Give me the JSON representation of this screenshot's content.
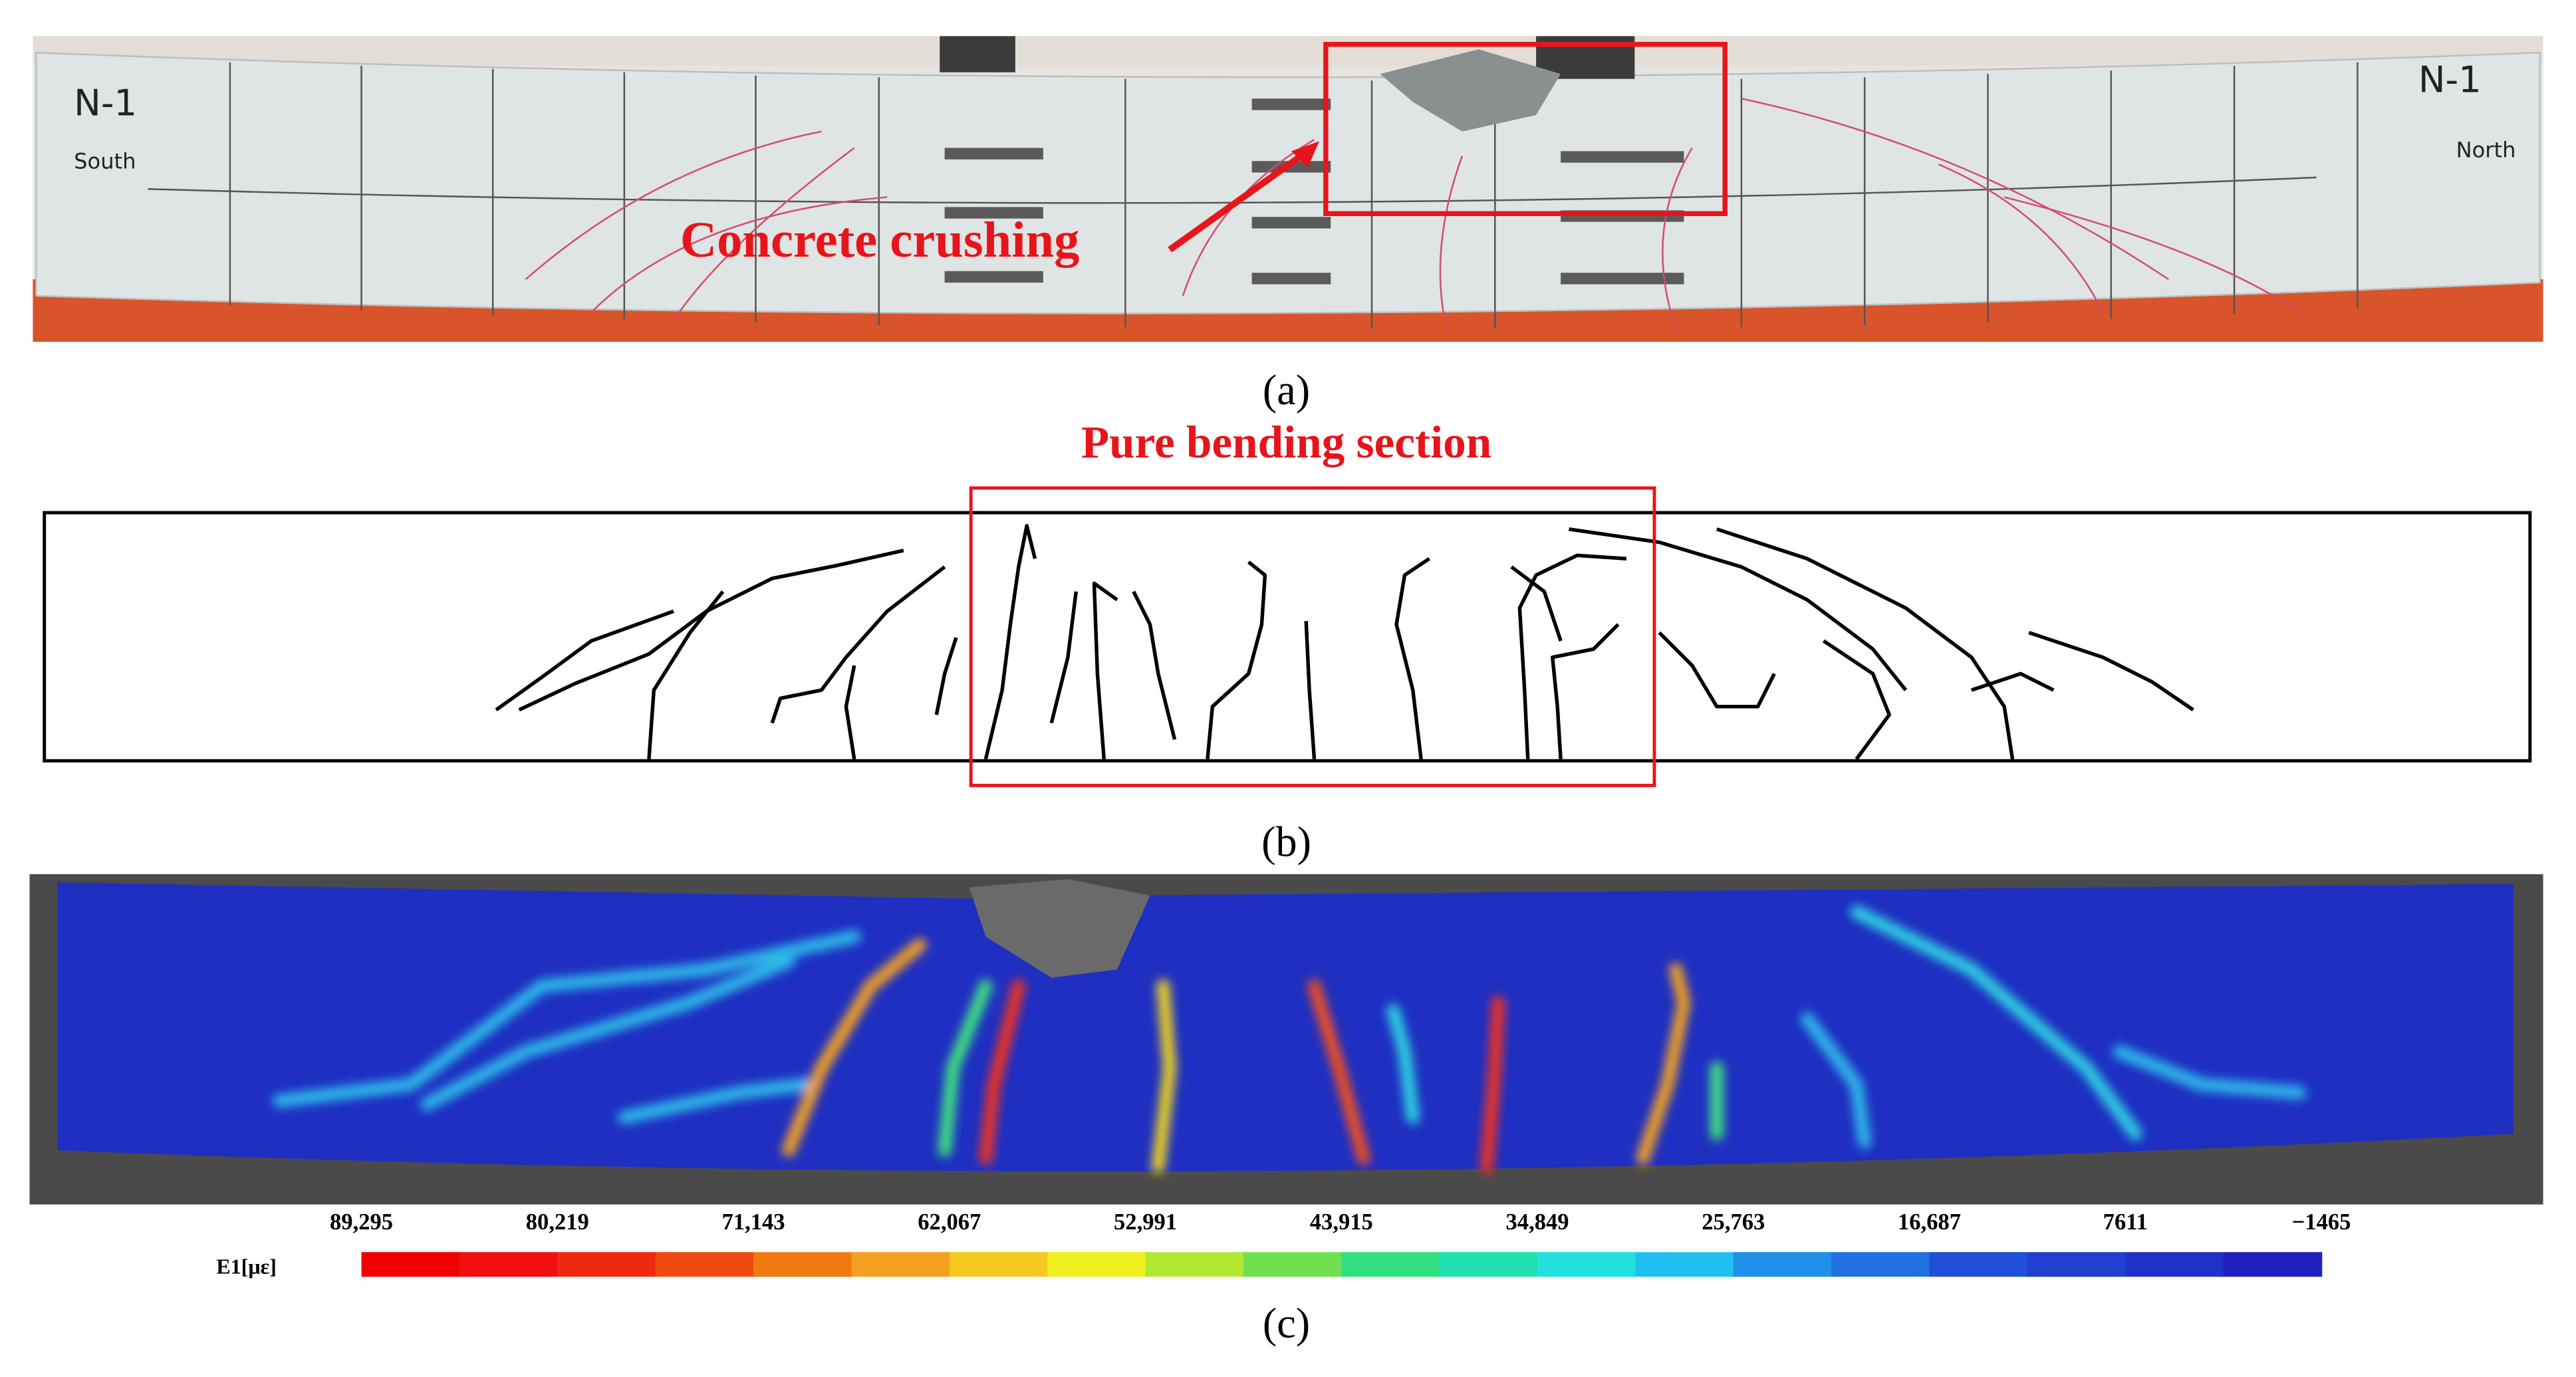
{
  "panel_a": {
    "south_id": "N-1",
    "south": "South",
    "north_id": "N-1",
    "north": "North",
    "annotation": "Concrete crushing",
    "caption": "(a)"
  },
  "panel_b": {
    "annotation": "Pure bending section",
    "caption": "(b)"
  },
  "panel_c": {
    "colorbar_label": "E1[με]",
    "colorbar_ticks": [
      "89,295",
      "80,219",
      "71,143",
      "62,067",
      "52,991",
      "43,915",
      "34,849",
      "25,763",
      "16,687",
      "7611",
      "−1465"
    ],
    "caption": "(c)"
  }
}
